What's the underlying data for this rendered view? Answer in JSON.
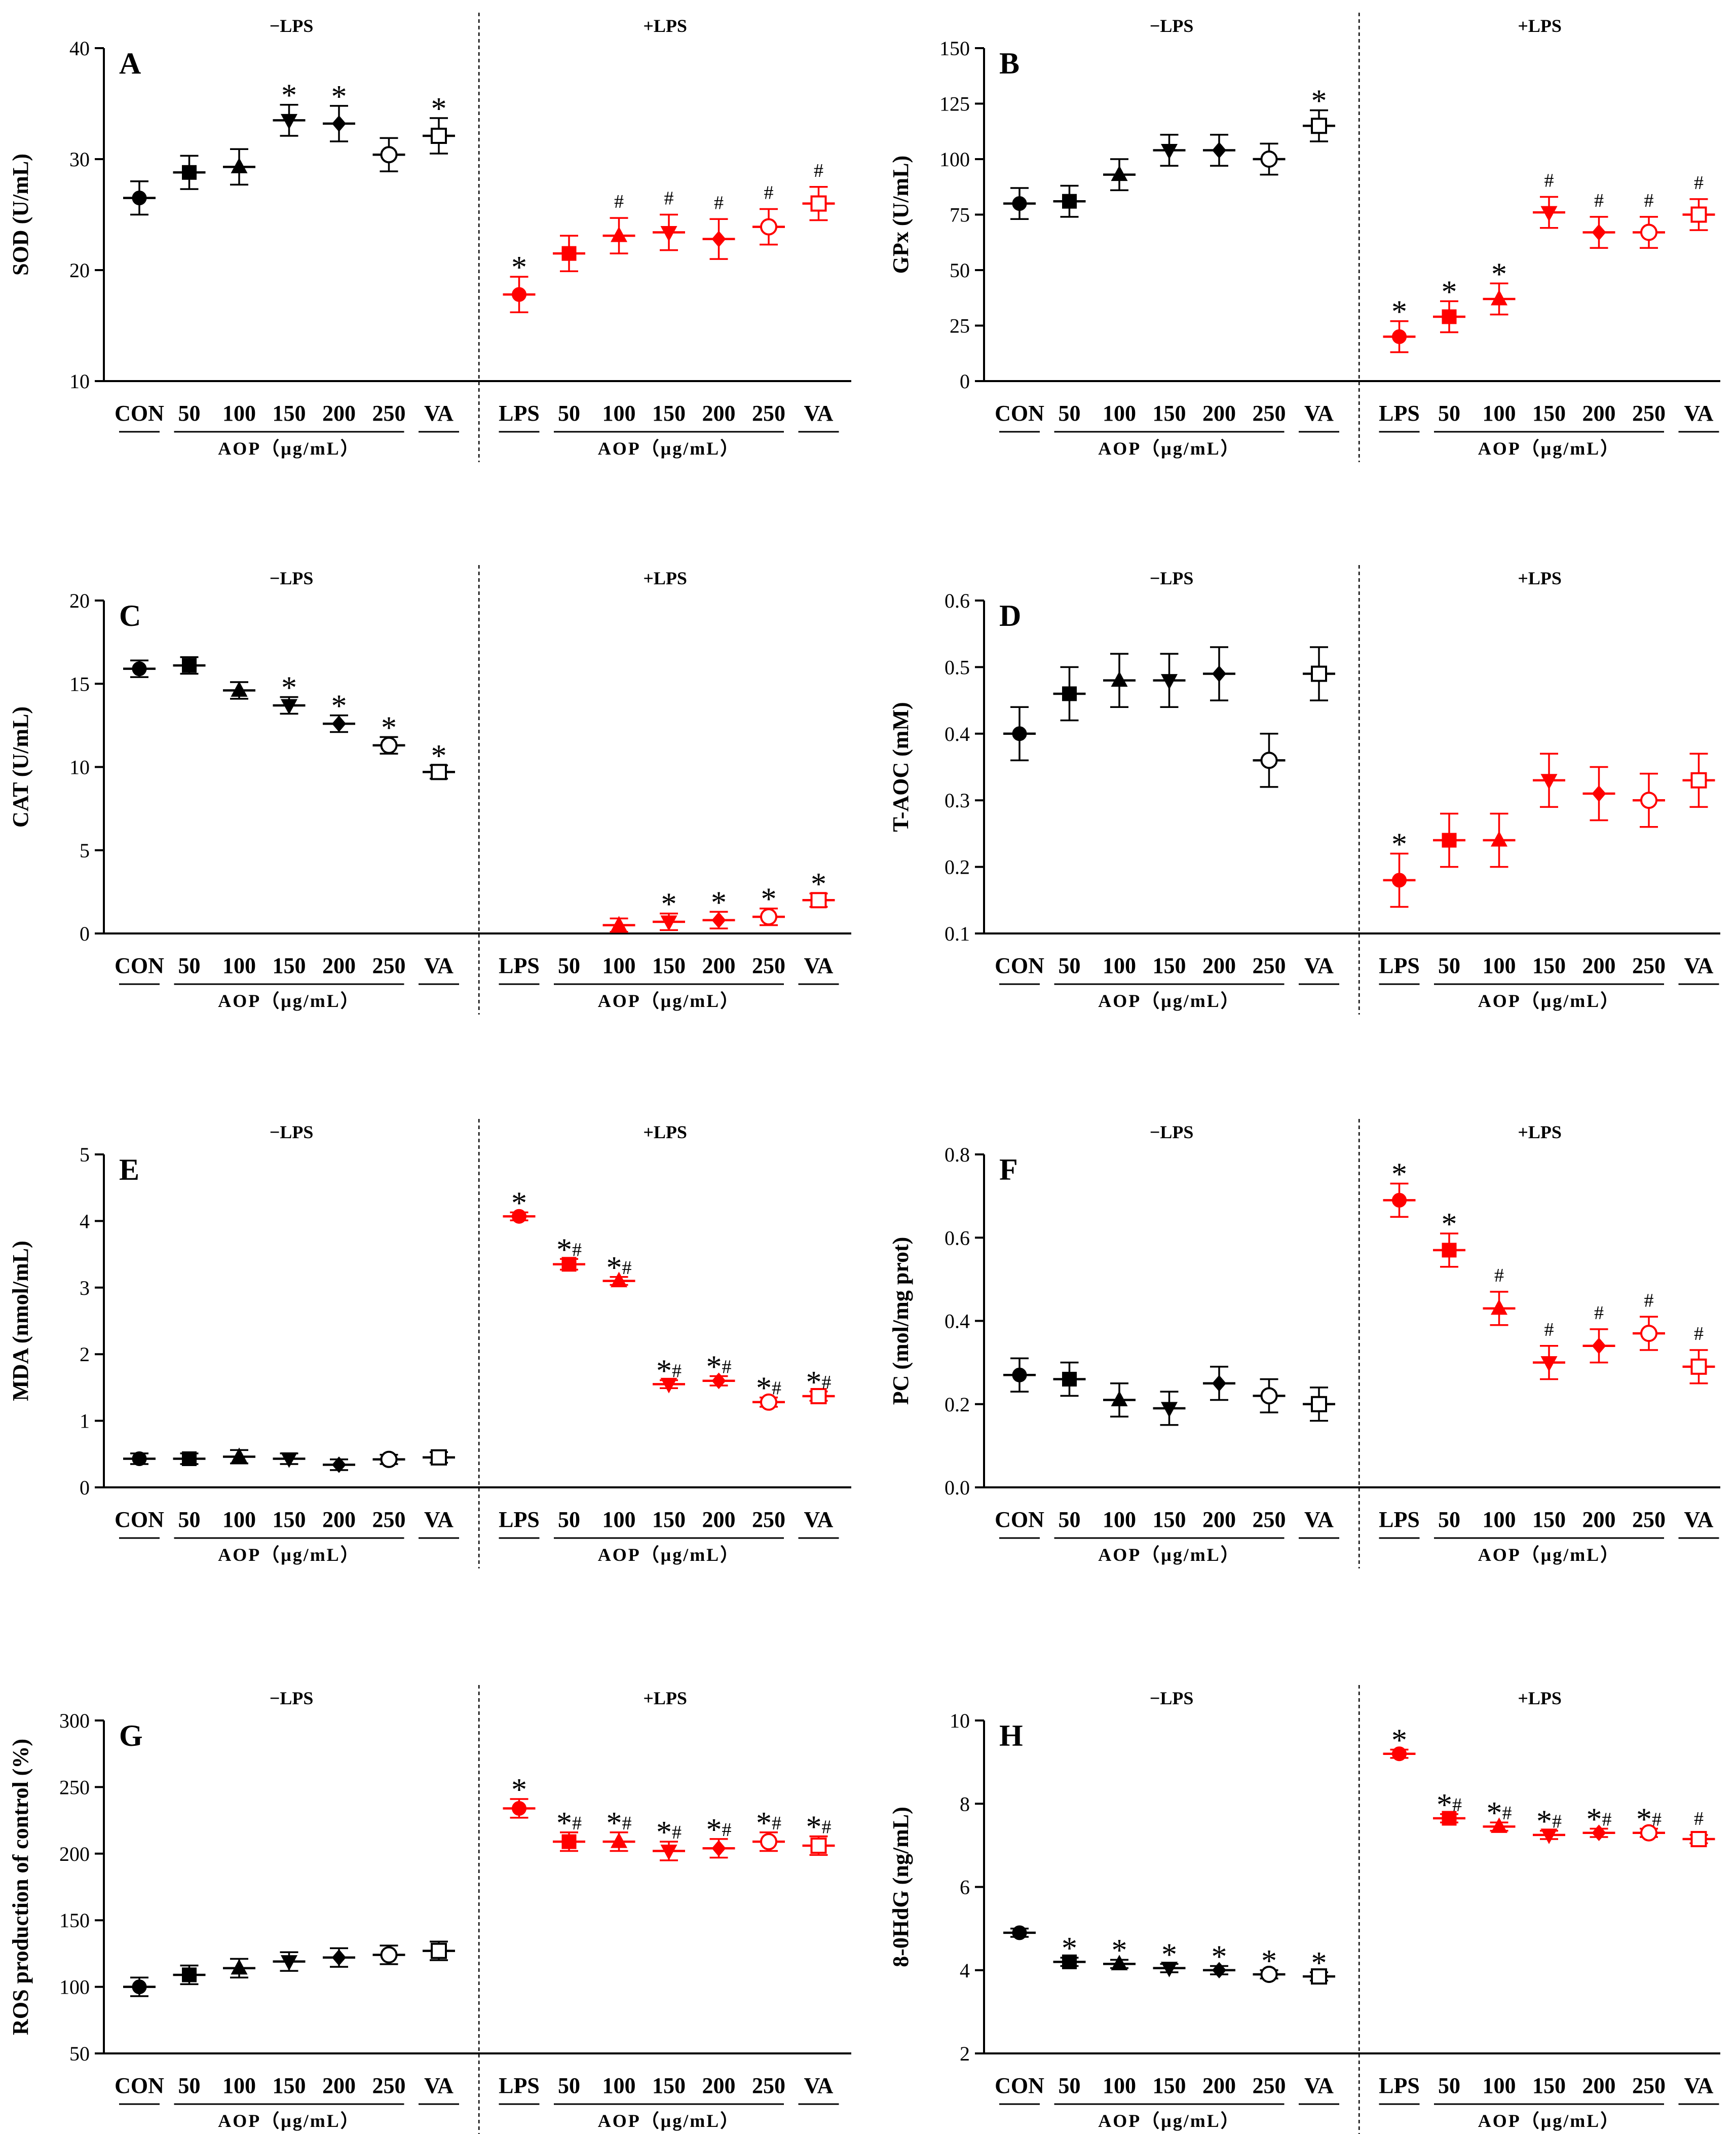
{
  "figure": {
    "colors": {
      "black": "#000000",
      "red": "#ff0000"
    },
    "markers": [
      "circle",
      "square",
      "triangle-up",
      "triangle-down",
      "diamond",
      "open-circle",
      "open-square"
    ],
    "chart_data": [
      {
        "type": "scatter",
        "panel_label": "A",
        "ylabel": "SOD (U/mL)",
        "ylim": [
          10,
          40
        ],
        "yticks": [
          10,
          20,
          30,
          40
        ],
        "group_labels": {
          "minus": "−LPS",
          "plus": "+LPS"
        },
        "x_labels": {
          "minus": [
            "CON",
            "50",
            "100",
            "150",
            "200",
            "250",
            "VA"
          ],
          "plus": [
            "LPS",
            "50",
            "100",
            "150",
            "200",
            "250",
            "VA"
          ]
        },
        "aop_label": "AOP（μg/mL）",
        "series": [
          {
            "name": "−LPS",
            "color": "black",
            "values": [
              26.5,
              28.8,
              29.3,
              33.5,
              33.2,
              30.4,
              32.1
            ],
            "errors": [
              1.5,
              1.5,
              1.6,
              1.4,
              1.6,
              1.5,
              1.6
            ],
            "annotations": [
              "",
              "",
              "",
              "*",
              "*",
              "",
              "*"
            ]
          },
          {
            "name": "+LPS",
            "color": "red",
            "values": [
              17.8,
              21.5,
              23.1,
              23.4,
              22.8,
              23.9,
              26.0
            ],
            "errors": [
              1.6,
              1.6,
              1.6,
              1.6,
              1.8,
              1.6,
              1.5
            ],
            "annotations": [
              "*",
              "",
              "#",
              "#",
              "#",
              "#",
              "#"
            ]
          }
        ]
      },
      {
        "type": "scatter",
        "panel_label": "B",
        "ylabel": "GPx (U/mL)",
        "ylim": [
          0,
          150
        ],
        "yticks": [
          0,
          25,
          50,
          75,
          100,
          125,
          150
        ],
        "group_labels": {
          "minus": "−LPS",
          "plus": "+LPS"
        },
        "x_labels": {
          "minus": [
            "CON",
            "50",
            "100",
            "150",
            "200",
            "250",
            "VA"
          ],
          "plus": [
            "LPS",
            "50",
            "100",
            "150",
            "200",
            "250",
            "VA"
          ]
        },
        "aop_label": "AOP（μg/mL）",
        "series": [
          {
            "name": "−LPS",
            "color": "black",
            "values": [
              80,
              81,
              93,
              104,
              104,
              100,
              115
            ],
            "errors": [
              7,
              7,
              7,
              7,
              7,
              7,
              7
            ],
            "annotations": [
              "",
              "",
              "",
              "",
              "",
              "",
              "*"
            ]
          },
          {
            "name": "+LPS",
            "color": "red",
            "values": [
              20,
              29,
              37,
              76,
              67,
              67,
              75
            ],
            "errors": [
              7,
              7,
              7,
              7,
              7,
              7,
              7
            ],
            "annotations": [
              "*",
              "*",
              "*",
              "#",
              "#",
              "#",
              "#"
            ]
          }
        ]
      },
      {
        "type": "scatter",
        "panel_label": "C",
        "ylabel": "CAT (U/mL)",
        "ylim": [
          0,
          20
        ],
        "yticks": [
          0,
          5,
          10,
          15,
          20
        ],
        "group_labels": {
          "minus": "−LPS",
          "plus": "+LPS"
        },
        "x_labels": {
          "minus": [
            "CON",
            "50",
            "100",
            "150",
            "200",
            "250",
            "VA"
          ],
          "plus": [
            "LPS",
            "50",
            "100",
            "150",
            "200",
            "250",
            "VA"
          ]
        },
        "aop_label": "AOP（μg/mL）",
        "series": [
          {
            "name": "−LPS",
            "color": "black",
            "values": [
              15.9,
              16.1,
              14.6,
              13.7,
              12.6,
              11.3,
              9.7
            ],
            "errors": [
              0.5,
              0.5,
              0.5,
              0.5,
              0.5,
              0.5,
              0.4
            ],
            "annotations": [
              "",
              "",
              "",
              "*",
              "*",
              "*",
              "*"
            ]
          },
          {
            "name": "+LPS",
            "color": "red",
            "values": [
              null,
              null,
              0.5,
              0.7,
              0.8,
              1.0,
              2.0
            ],
            "errors": [
              0,
              0,
              0.4,
              0.5,
              0.5,
              0.5,
              0.4
            ],
            "annotations": [
              "",
              "",
              "",
              "*",
              "*",
              "*",
              "*"
            ]
          }
        ]
      },
      {
        "type": "scatter",
        "panel_label": "D",
        "ylabel": "T-AOC (mM)",
        "ylim": [
          0.1,
          0.6
        ],
        "yticks": [
          0.1,
          0.2,
          0.3,
          0.4,
          0.5,
          0.6
        ],
        "group_labels": {
          "minus": "−LPS",
          "plus": "+LPS"
        },
        "x_labels": {
          "minus": [
            "CON",
            "50",
            "100",
            "150",
            "200",
            "250",
            "VA"
          ],
          "plus": [
            "LPS",
            "50",
            "100",
            "150",
            "200",
            "250",
            "VA"
          ]
        },
        "aop_label": "AOP（μg/mL）",
        "series": [
          {
            "name": "−LPS",
            "color": "black",
            "values": [
              0.4,
              0.46,
              0.48,
              0.48,
              0.49,
              0.36,
              0.49
            ],
            "errors": [
              0.04,
              0.04,
              0.04,
              0.04,
              0.04,
              0.04,
              0.04
            ],
            "annotations": [
              "",
              "",
              "",
              "",
              "",
              "",
              ""
            ]
          },
          {
            "name": "+LPS",
            "color": "red",
            "values": [
              0.18,
              0.24,
              0.24,
              0.33,
              0.31,
              0.3,
              0.33
            ],
            "errors": [
              0.04,
              0.04,
              0.04,
              0.04,
              0.04,
              0.04,
              0.04
            ],
            "annotations": [
              "*",
              "",
              "",
              "",
              "",
              "",
              ""
            ]
          }
        ]
      },
      {
        "type": "scatter",
        "panel_label": "E",
        "ylabel": "MDA (nmol/mL)",
        "ylim": [
          0,
          5
        ],
        "yticks": [
          0,
          1,
          2,
          3,
          4,
          5
        ],
        "group_labels": {
          "minus": "−LPS",
          "plus": "+LPS"
        },
        "x_labels": {
          "minus": [
            "CON",
            "50",
            "100",
            "150",
            "200",
            "250",
            "VA"
          ],
          "plus": [
            "LPS",
            "50",
            "100",
            "150",
            "200",
            "250",
            "VA"
          ]
        },
        "aop_label": "AOP（μg/mL）",
        "series": [
          {
            "name": "−LPS",
            "color": "black",
            "values": [
              0.43,
              0.43,
              0.46,
              0.43,
              0.34,
              0.42,
              0.45
            ],
            "errors": [
              0.08,
              0.08,
              0.1,
              0.08,
              0.08,
              0.07,
              0.08
            ],
            "annotations": [
              "",
              "",
              "",
              "",
              "",
              "",
              ""
            ]
          },
          {
            "name": "+LPS",
            "color": "red",
            "values": [
              4.07,
              3.35,
              3.1,
              1.55,
              1.6,
              1.28,
              1.37
            ],
            "errors": [
              0.06,
              0.08,
              0.06,
              0.06,
              0.07,
              0.07,
              0.07
            ],
            "annotations": [
              "*",
              "*#",
              "*#",
              "*#",
              "*#",
              "*#",
              "*#"
            ]
          }
        ]
      },
      {
        "type": "scatter",
        "panel_label": "F",
        "ylabel": "PC (mol/mg prot)",
        "ylim": [
          0,
          0.8
        ],
        "yticks": [
          0.0,
          0.2,
          0.4,
          0.6,
          0.8
        ],
        "group_labels": {
          "minus": "−LPS",
          "plus": "+LPS"
        },
        "x_labels": {
          "minus": [
            "CON",
            "50",
            "100",
            "150",
            "200",
            "250",
            "VA"
          ],
          "plus": [
            "LPS",
            "50",
            "100",
            "150",
            "200",
            "250",
            "VA"
          ]
        },
        "aop_label": "AOP（μg/mL）",
        "series": [
          {
            "name": "−LPS",
            "color": "black",
            "values": [
              0.27,
              0.26,
              0.21,
              0.19,
              0.25,
              0.22,
              0.2
            ],
            "errors": [
              0.04,
              0.04,
              0.04,
              0.04,
              0.04,
              0.04,
              0.04
            ],
            "annotations": [
              "",
              "",
              "",
              "",
              "",
              "",
              ""
            ]
          },
          {
            "name": "+LPS",
            "color": "red",
            "values": [
              0.69,
              0.57,
              0.43,
              0.3,
              0.34,
              0.37,
              0.29
            ],
            "errors": [
              0.04,
              0.04,
              0.04,
              0.04,
              0.04,
              0.04,
              0.04
            ],
            "annotations": [
              "*",
              "*",
              "#",
              "#",
              "#",
              "#",
              "#"
            ]
          }
        ]
      },
      {
        "type": "scatter",
        "panel_label": "G",
        "ylabel": "ROS production of control (%)",
        "ylim": [
          50,
          300
        ],
        "yticks": [
          50,
          100,
          150,
          200,
          250,
          300
        ],
        "group_labels": {
          "minus": "−LPS",
          "plus": "+LPS"
        },
        "x_labels": {
          "minus": [
            "CON",
            "50",
            "100",
            "150",
            "200",
            "250",
            "VA"
          ],
          "plus": [
            "LPS",
            "50",
            "100",
            "150",
            "200",
            "250",
            "VA"
          ]
        },
        "aop_label": "AOP（μg/mL）",
        "series": [
          {
            "name": "−LPS",
            "color": "black",
            "values": [
              100,
              109,
              114,
              119,
              122,
              124,
              127
            ],
            "errors": [
              7,
              7,
              7,
              7,
              7,
              7,
              7
            ],
            "annotations": [
              "",
              "",
              "",
              "",
              "",
              "",
              ""
            ]
          },
          {
            "name": "+LPS",
            "color": "red",
            "values": [
              234,
              209,
              209,
              202,
              204,
              209,
              206
            ],
            "errors": [
              7,
              7,
              7,
              7,
              7,
              7,
              7
            ],
            "annotations": [
              "*",
              "*#",
              "*#",
              "*#",
              "*#",
              "*#",
              "*#"
            ]
          }
        ]
      },
      {
        "type": "scatter",
        "panel_label": "H",
        "ylabel": "8-0HdG (ng/mL)",
        "ylim": [
          2,
          10
        ],
        "yticks": [
          2,
          4,
          6,
          8,
          10
        ],
        "group_labels": {
          "minus": "−LPS",
          "plus": "+LPS"
        },
        "x_labels": {
          "minus": [
            "CON",
            "50",
            "100",
            "150",
            "200",
            "250",
            "VA"
          ],
          "plus": [
            "LPS",
            "50",
            "100",
            "150",
            "200",
            "250",
            "VA"
          ]
        },
        "aop_label": "AOP（μg/mL）",
        "series": [
          {
            "name": "−LPS",
            "color": "black",
            "values": [
              4.9,
              4.2,
              4.15,
              4.05,
              4.0,
              3.9,
              3.85
            ],
            "errors": [
              0.1,
              0.1,
              0.1,
              0.1,
              0.1,
              0.1,
              0.1
            ],
            "annotations": [
              "",
              "*",
              "*",
              "*",
              "*",
              "*",
              "*"
            ]
          },
          {
            "name": "+LPS",
            "color": "red",
            "values": [
              9.2,
              7.65,
              7.45,
              7.25,
              7.3,
              7.3,
              7.15
            ],
            "errors": [
              0.1,
              0.1,
              0.1,
              0.1,
              0.1,
              0.1,
              0.1
            ],
            "annotations": [
              "*",
              "*#",
              "*#",
              "*#",
              "*#",
              "*#",
              "#"
            ]
          }
        ]
      }
    ]
  }
}
